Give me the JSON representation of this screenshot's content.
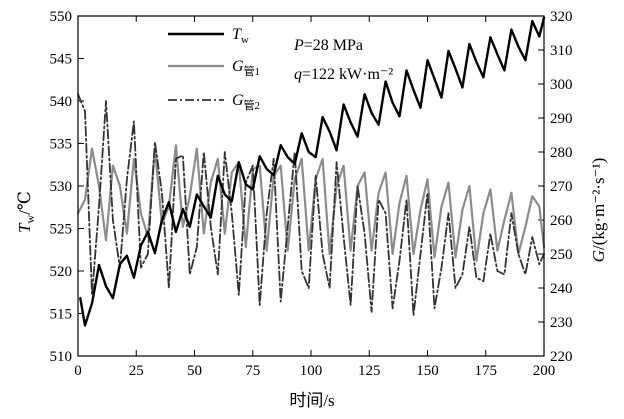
{
  "chart_data": {
    "type": "line",
    "xlabel": "时间/s",
    "ylabel_left": {
      "main": "T",
      "sub": "w",
      "unit": "/℃"
    },
    "ylabel_right": {
      "main": "G",
      "unit": "/(kg·m⁻²·s⁻¹)"
    },
    "xlim": [
      0,
      200
    ],
    "ylim_left": [
      510,
      550
    ],
    "ylim_right": [
      220,
      320
    ],
    "x_ticks": [
      0,
      25,
      50,
      75,
      100,
      125,
      150,
      175,
      200
    ],
    "y_left_ticks": [
      510,
      515,
      520,
      525,
      530,
      535,
      540,
      545,
      550
    ],
    "y_right_ticks": [
      220,
      230,
      240,
      250,
      260,
      270,
      280,
      290,
      300,
      310,
      320
    ],
    "annotations": [
      {
        "id": "pressure",
        "var": "P",
        "text": "=28 MPa"
      },
      {
        "id": "heat-flux",
        "var": "q",
        "text": "=122 kW·m⁻²"
      }
    ],
    "legend_position": "top-center",
    "colors": {
      "tw": "#000000",
      "g1": "#8c8c8c",
      "g2": "#333333"
    },
    "series": [
      {
        "name": "T_w",
        "legend_main": "T",
        "legend_sub": "w",
        "axis": "left",
        "style": "solid",
        "x": [
          1,
          3,
          6,
          9,
          12,
          15,
          18,
          21,
          24,
          27,
          30,
          33,
          36,
          39,
          42,
          45,
          48,
          51,
          54,
          57,
          60,
          63,
          66,
          69,
          72,
          75,
          78,
          81,
          84,
          87,
          90,
          93,
          96,
          99,
          102,
          105,
          108,
          111,
          114,
          117,
          120,
          123,
          126,
          129,
          132,
          135,
          138,
          141,
          144,
          147,
          150,
          153,
          156,
          159,
          162,
          165,
          168,
          171,
          174,
          177,
          180,
          183,
          186,
          189,
          192,
          195,
          198,
          200
        ],
        "y": [
          516.8,
          513.6,
          516.2,
          520.7,
          518.2,
          516.8,
          520.8,
          521.8,
          519.2,
          523.0,
          524.6,
          522.1,
          526.0,
          528.1,
          524.6,
          527.3,
          525.2,
          529.0,
          527.6,
          526.3,
          531.2,
          529.0,
          528.2,
          532.8,
          530.2,
          529.6,
          533.5,
          532.0,
          531.3,
          534.8,
          533.4,
          532.6,
          536.2,
          534.0,
          533.4,
          538.1,
          536.4,
          534.2,
          539.6,
          537.5,
          535.8,
          540.8,
          538.6,
          537.2,
          542.3,
          539.8,
          538.2,
          543.6,
          541.3,
          539.2,
          544.8,
          542.6,
          540.4,
          545.9,
          543.8,
          541.6,
          546.7,
          544.6,
          542.8,
          547.5,
          545.5,
          543.6,
          548.4,
          546.4,
          544.8,
          549.4,
          547.6,
          549.8
        ]
      },
      {
        "name": "G_管1",
        "legend_main": "G",
        "legend_sub": "管1",
        "axis": "right",
        "style": "solid",
        "x": [
          0,
          3,
          6,
          9,
          12,
          15,
          18,
          21,
          24,
          27,
          30,
          33,
          36,
          39,
          42,
          45,
          48,
          51,
          54,
          57,
          60,
          63,
          66,
          69,
          72,
          75,
          78,
          81,
          84,
          87,
          90,
          93,
          96,
          99,
          102,
          105,
          108,
          111,
          114,
          117,
          120,
          123,
          126,
          129,
          132,
          135,
          138,
          141,
          144,
          147,
          150,
          153,
          156,
          159,
          162,
          165,
          168,
          171,
          174,
          177,
          180,
          183,
          186,
          189,
          192,
          195,
          198,
          200
        ],
        "y": [
          262,
          266,
          281,
          270,
          254,
          276,
          270,
          256,
          278,
          262,
          255,
          281,
          259,
          264,
          282,
          258,
          267,
          281,
          256,
          271,
          278,
          256,
          274,
          277,
          252,
          275,
          276,
          251,
          273,
          276,
          251,
          272,
          278,
          251,
          272,
          278,
          250,
          270,
          276,
          251,
          270,
          274,
          251,
          268,
          274,
          250,
          265,
          273,
          250,
          263,
          272,
          249,
          264,
          271,
          249,
          263,
          270,
          248,
          262,
          269,
          251,
          260,
          268,
          250,
          258,
          267,
          264,
          252
        ]
      },
      {
        "name": "G_管2",
        "legend_main": "G",
        "legend_sub": "管2",
        "axis": "right",
        "style": "dashdot",
        "x": [
          0,
          3,
          6,
          9,
          12,
          15,
          18,
          21,
          24,
          27,
          30,
          33,
          36,
          39,
          42,
          45,
          48,
          51,
          54,
          57,
          60,
          63,
          66,
          69,
          72,
          75,
          78,
          81,
          84,
          87,
          90,
          93,
          96,
          99,
          102,
          105,
          108,
          111,
          114,
          117,
          120,
          123,
          126,
          129,
          132,
          135,
          138,
          141,
          144,
          147,
          150,
          153,
          156,
          159,
          162,
          165,
          168,
          171,
          174,
          177,
          180,
          183,
          186,
          189,
          192,
          195,
          198,
          200
        ],
        "y": [
          297,
          292,
          238,
          264,
          295,
          260,
          246,
          272,
          289,
          246,
          250,
          283,
          268,
          240,
          278,
          279,
          244,
          252,
          280,
          258,
          244,
          280,
          262,
          238,
          271,
          276,
          235,
          262,
          278,
          236,
          258,
          280,
          245,
          240,
          273,
          250,
          240,
          277,
          255,
          235,
          270,
          256,
          233,
          266,
          262,
          234,
          248,
          266,
          232,
          250,
          268,
          234,
          246,
          262,
          240,
          244,
          258,
          243,
          242,
          256,
          245,
          244,
          262,
          250,
          244,
          255,
          247,
          250
        ]
      }
    ]
  }
}
